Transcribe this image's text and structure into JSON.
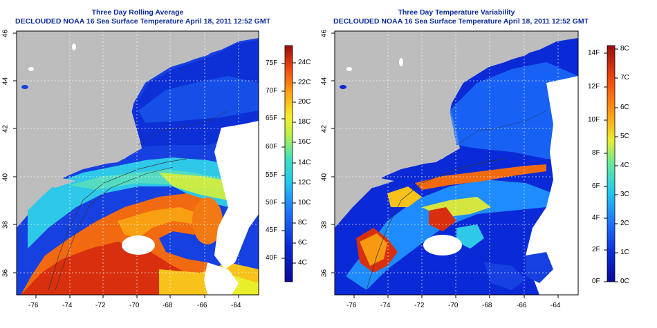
{
  "panels": [
    {
      "title_line1": "Three Day Rolling Average",
      "title_line2": "DECLOUDED NOAA 16 Sea Surface Temperature April 18, 2011 12:52 GMT",
      "lon_ticks": [
        "-76",
        "-74",
        "-72",
        "-70",
        "-68",
        "-66",
        "-64"
      ],
      "lat_ticks": [
        "46",
        "44",
        "42",
        "40",
        "38",
        "36"
      ],
      "colorbar_f": [
        "75F",
        "70F",
        "65F",
        "60F",
        "55F",
        "50F",
        "45F",
        "40F"
      ],
      "colorbar_c": [
        "24C",
        "22C",
        "20C",
        "18C",
        "16C",
        "14C",
        "12C",
        "10C",
        "8C",
        "6C",
        "4C"
      ]
    },
    {
      "title_line1": "Three Day Temperature Variability",
      "title_line2": "DECLOUDED NOAA 16 Sea Surface Temperature April 18, 2011 12:52 GMT",
      "lon_ticks": [
        "-76",
        "-74",
        "-72",
        "-70",
        "-68",
        "-66",
        "-64"
      ],
      "lat_ticks": [
        "46",
        "44",
        "42",
        "40",
        "38",
        "36"
      ],
      "colorbar_f": [
        "14F",
        "12F",
        "10F",
        "8F",
        "6F",
        "4F",
        "2F",
        "0F"
      ],
      "colorbar_c": [
        "8C",
        "7C",
        "6C",
        "5C",
        "4C",
        "3C",
        "2C",
        "1C",
        "0C"
      ]
    }
  ],
  "colors": {
    "land": "#bdbdbd",
    "cloud": "#ffffff",
    "title": "#0b2a9b"
  }
}
